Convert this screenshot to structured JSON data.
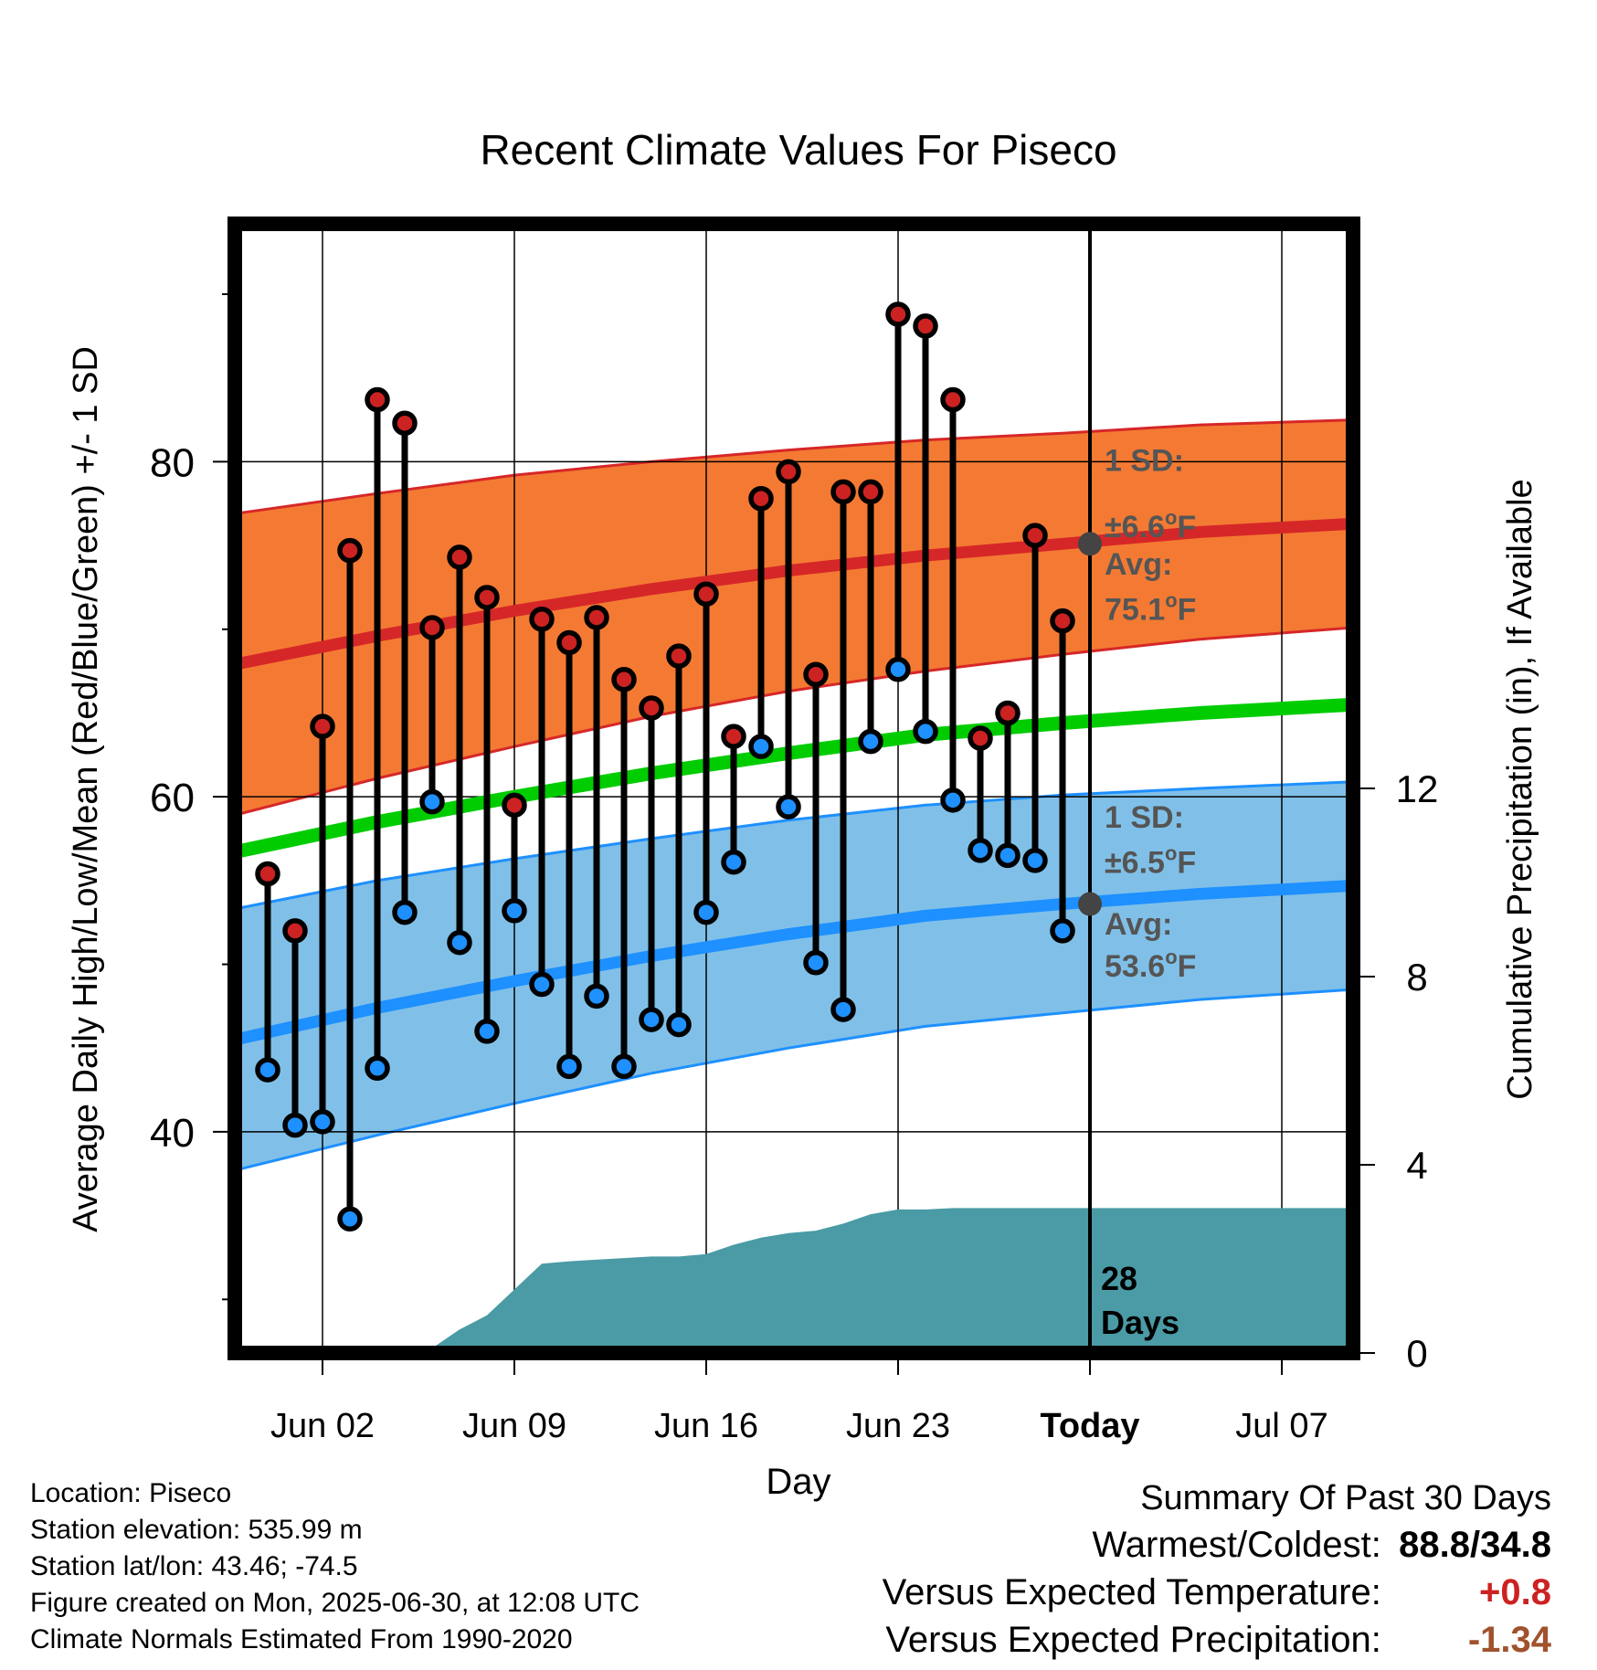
{
  "chart_data": {
    "type": "line",
    "title": "Recent Climate Values For Piseco",
    "xlabel": "Day",
    "ylabel_left": "Average Daily High/Low/Mean (Red/Blue/Green) +/- 1 SD",
    "ylabel_right": "Cumulative Precipitation (in), If Available",
    "x_ticks": [
      {
        "day": 2,
        "label": "Jun 02"
      },
      {
        "day": 9,
        "label": "Jun 09"
      },
      {
        "day": 16,
        "label": "Jun 16"
      },
      {
        "day": 23,
        "label": "Jun 23"
      },
      {
        "day": 30,
        "label": "Today"
      },
      {
        "day": 37,
        "label": "Jul 07"
      }
    ],
    "x_range": [
      -1.2,
      39.6
    ],
    "today_day": 30,
    "y_left": {
      "range": [
        26.8,
        94.2
      ],
      "major_ticks": [
        40,
        60,
        80
      ],
      "minor_ticks": [
        30,
        50,
        70,
        90
      ]
    },
    "y_right": {
      "range": [
        0,
        24.0
      ],
      "ticks": [
        0,
        4,
        8,
        12
      ]
    },
    "grid": true,
    "normals": {
      "days": [
        -1.2,
        4,
        9,
        14,
        19,
        24,
        29,
        34,
        39.6
      ],
      "high_avg": [
        67.9,
        69.6,
        71.1,
        72.4,
        73.5,
        74.4,
        75.1,
        75.8,
        76.3
      ],
      "high_sd": [
        9.0,
        8.5,
        8.1,
        7.6,
        7.2,
        6.9,
        6.6,
        6.4,
        6.2
      ],
      "low_avg": [
        45.5,
        47.4,
        49.0,
        50.5,
        51.8,
        52.9,
        53.6,
        54.2,
        54.7
      ],
      "low_sd": [
        7.8,
        7.6,
        7.3,
        7.0,
        6.8,
        6.6,
        6.5,
        6.3,
        6.2
      ],
      "mean_avg": [
        56.7,
        58.5,
        60.0,
        61.4,
        62.6,
        63.7,
        64.4,
        65.0,
        65.5
      ]
    },
    "series": [
      {
        "name": "Daily High",
        "color": "#cc2222",
        "values": [
          55.4,
          52.0,
          64.2,
          74.7,
          83.7,
          82.3,
          70.1,
          74.3,
          71.9,
          59.5,
          70.6,
          69.2,
          70.7,
          67.0,
          65.3,
          68.4,
          72.1,
          63.6,
          77.8,
          79.4,
          67.3,
          78.2,
          78.2,
          88.8,
          88.1,
          83.7,
          63.5,
          65.0,
          75.6,
          70.5
        ]
      },
      {
        "name": "Daily Low",
        "color": "#1e90ff",
        "values": [
          43.7,
          40.4,
          40.6,
          34.8,
          43.8,
          53.1,
          59.7,
          51.3,
          46.0,
          53.2,
          48.8,
          43.9,
          48.1,
          43.9,
          46.7,
          46.4,
          53.1,
          56.1,
          63.0,
          59.4,
          50.1,
          47.3,
          63.3,
          67.6,
          63.9,
          59.8,
          56.8,
          56.5,
          56.2,
          52.0
        ]
      }
    ],
    "precip": {
      "days": [
        0,
        3,
        6,
        7,
        8,
        10,
        11,
        14,
        15,
        16,
        17,
        18,
        19,
        20,
        21,
        22,
        23,
        24,
        25,
        28,
        30
      ],
      "values": [
        0.05,
        0.1,
        0.1,
        0.5,
        0.8,
        1.9,
        1.95,
        2.05,
        2.05,
        2.1,
        2.3,
        2.45,
        2.55,
        2.6,
        2.75,
        2.95,
        3.05,
        3.05,
        3.08,
        3.08,
        3.08
      ]
    },
    "annotations": {
      "high_sd_line1": "1 SD:",
      "high_sd_line2": "±6.6",
      "high_avg_line1": "Avg:",
      "high_avg_line2": "75.1",
      "low_sd_line1": "1 SD:",
      "low_sd_line2": "±6.5",
      "low_avg_line1": "Avg:",
      "low_avg_line2": "53.6",
      "deg_sup": "o",
      "unit_F": "F",
      "days_num": "28",
      "days_word": "Days"
    },
    "colors": {
      "high_band": "#f47a33",
      "high_line": "#d62728",
      "low_band": "#80c0e8",
      "low_line": "#1e90ff",
      "mean_line": "#00cc00",
      "precip_fill": "#4a9ba5",
      "annotation_text": "#555555",
      "today_marker": "#444444"
    }
  },
  "info": {
    "location": "Location: Piseco",
    "elevation": "Station elevation: 535.99 m",
    "latlon": "Station lat/lon: 43.46; -74.5",
    "created": "Figure created on Mon, 2025-06-30, at 12:08 UTC",
    "normals": "Climate Normals Estimated From 1990-2020"
  },
  "summary": {
    "title": "Summary Of Past 30 Days",
    "warmest_label": "Warmest/Coldest:",
    "warmest_value": "88.8/34.8",
    "temp_label": "Versus Expected Temperature:",
    "temp_value": "+0.8",
    "temp_color": "#cc2222",
    "precip_label": "Versus Expected Precipitation:",
    "precip_value": "-1.34",
    "precip_color": "#a0522d"
  }
}
